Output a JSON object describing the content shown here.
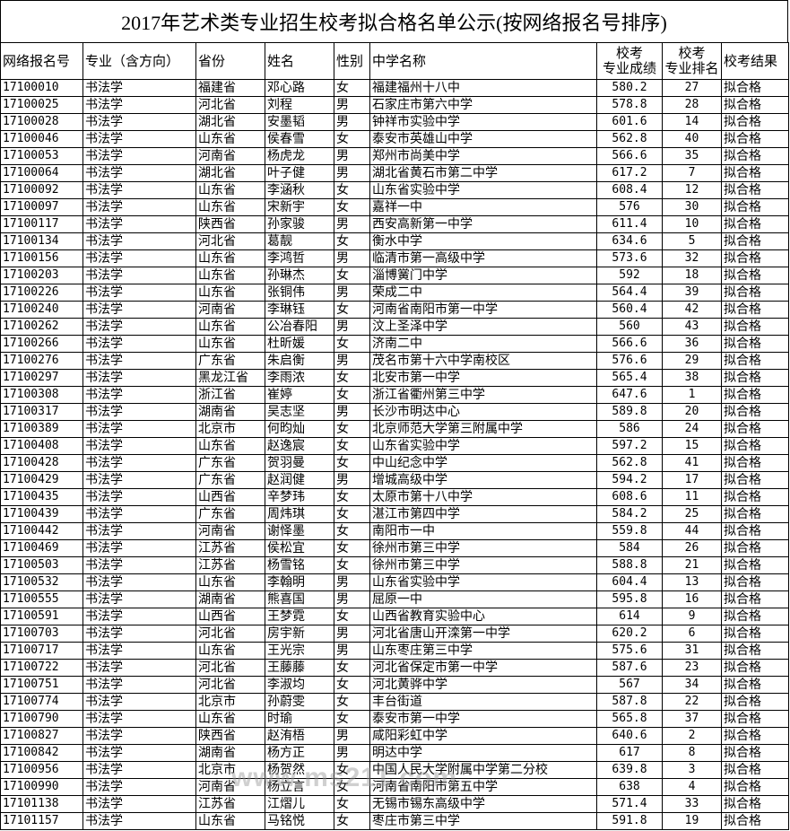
{
  "title": "2017年艺术类专业招生校考拟合格名单公示(按网络报名号排序)",
  "columns": [
    "网络报名号",
    "专业（含方向）",
    "省份",
    "姓名",
    "性别",
    "中学名称",
    "校考\n专业成绩",
    "校考\n专业排名",
    "校考结果"
  ],
  "watermark": "www.ms211.com",
  "rows": [
    [
      "17100010",
      "书法学",
      "福建省",
      "邓心路",
      "女",
      "福建福州十八中",
      "580.2",
      "27",
      "拟合格"
    ],
    [
      "17100025",
      "书法学",
      "河北省",
      "刘程",
      "男",
      "石家庄市第六中学",
      "578.8",
      "28",
      "拟合格"
    ],
    [
      "17100028",
      "书法学",
      "湖北省",
      "安墨韬",
      "男",
      "钟祥市实验中学",
      "601.6",
      "14",
      "拟合格"
    ],
    [
      "17100046",
      "书法学",
      "山东省",
      "侯春雪",
      "女",
      "泰安市英雄山中学",
      "562.8",
      "40",
      "拟合格"
    ],
    [
      "17100053",
      "书法学",
      "河南省",
      "杨虎龙",
      "男",
      "郑州市尚美中学",
      "566.6",
      "35",
      "拟合格"
    ],
    [
      "17100064",
      "书法学",
      "湖北省",
      "叶子健",
      "男",
      "湖北省黄石市第二中学",
      "617.2",
      "7",
      "拟合格"
    ],
    [
      "17100092",
      "书法学",
      "山东省",
      "李涵秋",
      "女",
      "山东省实验中学",
      "608.4",
      "12",
      "拟合格"
    ],
    [
      "17100097",
      "书法学",
      "山东省",
      "宋新宇",
      "女",
      "嘉祥一中",
      "576",
      "30",
      "拟合格"
    ],
    [
      "17100117",
      "书法学",
      "陕西省",
      "孙家骏",
      "男",
      "西安高新第一中学",
      "611.4",
      "10",
      "拟合格"
    ],
    [
      "17100134",
      "书法学",
      "河北省",
      "葛靓",
      "女",
      "衡水中学",
      "634.6",
      "5",
      "拟合格"
    ],
    [
      "17100156",
      "书法学",
      "山东省",
      "李鸿哲",
      "男",
      "临清市第一高级中学",
      "573.6",
      "32",
      "拟合格"
    ],
    [
      "17100203",
      "书法学",
      "山东省",
      "孙琳杰",
      "女",
      "淄博黉门中学",
      "592",
      "18",
      "拟合格"
    ],
    [
      "17100226",
      "书法学",
      "山东省",
      "张铜伟",
      "男",
      "荣成二中",
      "564.4",
      "39",
      "拟合格"
    ],
    [
      "17100240",
      "书法学",
      "河南省",
      "李琳钰",
      "女",
      "河南省南阳市第一中学",
      "560.4",
      "42",
      "拟合格"
    ],
    [
      "17100262",
      "书法学",
      "山东省",
      "公冶春阳",
      "男",
      "汶上圣泽中学",
      "560",
      "43",
      "拟合格"
    ],
    [
      "17100266",
      "书法学",
      "山东省",
      "杜昕媛",
      "女",
      "济南二中",
      "566.6",
      "36",
      "拟合格"
    ],
    [
      "17100276",
      "书法学",
      "广东省",
      "朱启衡",
      "男",
      "茂名市第十六中学南校区",
      "576.6",
      "29",
      "拟合格"
    ],
    [
      "17100297",
      "书法学",
      "黑龙江省",
      "李雨浓",
      "女",
      "北安市第一中学",
      "565.4",
      "38",
      "拟合格"
    ],
    [
      "17100308",
      "书法学",
      "浙江省",
      "崔婷",
      "女",
      "浙江省衢州第三中学",
      "647.6",
      "1",
      "拟合格"
    ],
    [
      "17100317",
      "书法学",
      "湖南省",
      "吴志坚",
      "男",
      "长沙市明达中心",
      "589.8",
      "20",
      "拟合格"
    ],
    [
      "17100389",
      "书法学",
      "北京市",
      "何昀灿",
      "女",
      "北京师范大学第三附属中学",
      "586",
      "24",
      "拟合格"
    ],
    [
      "17100408",
      "书法学",
      "山东省",
      "赵逸宸",
      "女",
      "山东省实验中学",
      "597.2",
      "15",
      "拟合格"
    ],
    [
      "17100428",
      "书法学",
      "广东省",
      "贺羽曼",
      "女",
      "中山纪念中学",
      "562.8",
      "41",
      "拟合格"
    ],
    [
      "17100429",
      "书法学",
      "广东省",
      "赵润健",
      "男",
      "增城高级中学",
      "594.2",
      "17",
      "拟合格"
    ],
    [
      "17100435",
      "书法学",
      "山西省",
      "辛梦玮",
      "女",
      "太原市第十八中学",
      "608.6",
      "11",
      "拟合格"
    ],
    [
      "17100439",
      "书法学",
      "广东省",
      "周炜琪",
      "女",
      "湛江市第四中学",
      "584.2",
      "25",
      "拟合格"
    ],
    [
      "17100442",
      "书法学",
      "河南省",
      "谢怿墨",
      "女",
      "南阳市一中",
      "559.8",
      "44",
      "拟合格"
    ],
    [
      "17100469",
      "书法学",
      "江苏省",
      "侯松宜",
      "女",
      "徐州市第三中学",
      "584",
      "26",
      "拟合格"
    ],
    [
      "17100503",
      "书法学",
      "江苏省",
      "杨雪铭",
      "女",
      "徐州市第三中学",
      "588.8",
      "21",
      "拟合格"
    ],
    [
      "17100532",
      "书法学",
      "山东省",
      "李翰明",
      "男",
      "山东省实验中学",
      "604.4",
      "13",
      "拟合格"
    ],
    [
      "17100555",
      "书法学",
      "湖南省",
      "熊喜国",
      "男",
      "屈原一中",
      "595.8",
      "16",
      "拟合格"
    ],
    [
      "17100591",
      "书法学",
      "山西省",
      "王梦霓",
      "女",
      "山西省教育实验中心",
      "614",
      "9",
      "拟合格"
    ],
    [
      "17100703",
      "书法学",
      "河北省",
      "房宇新",
      "男",
      "河北省唐山开滦第一中学",
      "620.2",
      "6",
      "拟合格"
    ],
    [
      "17100717",
      "书法学",
      "山东省",
      "王光宗",
      "男",
      "山东枣庄第三中学",
      "575.6",
      "31",
      "拟合格"
    ],
    [
      "17100722",
      "书法学",
      "河北省",
      "王藤藤",
      "女",
      "河北省保定市第一中学",
      "587.6",
      "23",
      "拟合格"
    ],
    [
      "17100751",
      "书法学",
      "河北省",
      "李淑均",
      "女",
      "河北黄骅中学",
      "567",
      "34",
      "拟合格"
    ],
    [
      "17100774",
      "书法学",
      "北京市",
      "孙蔚雯",
      "女",
      "丰台街道",
      "587.8",
      "22",
      "拟合格"
    ],
    [
      "17100790",
      "书法学",
      "山东省",
      "时瑜",
      "女",
      "泰安市第一中学",
      "565.8",
      "37",
      "拟合格"
    ],
    [
      "17100827",
      "书法学",
      "陕西省",
      "赵洧梧",
      "男",
      "咸阳彩虹中学",
      "640.6",
      "2",
      "拟合格"
    ],
    [
      "17100842",
      "书法学",
      "湖南省",
      "杨方正",
      "男",
      "明达中学",
      "617",
      "8",
      "拟合格"
    ],
    [
      "17100956",
      "书法学",
      "北京市",
      "杨贺然",
      "女",
      "中国人民大学附属中学第二分校",
      "639.8",
      "3",
      "拟合格"
    ],
    [
      "17100990",
      "书法学",
      "河南省",
      "杨立言",
      "女",
      "河南省南阳市第五中学",
      "638",
      "4",
      "拟合格"
    ],
    [
      "17101138",
      "书法学",
      "江苏省",
      "江熠儿",
      "女",
      "无锡市锡东高级中学",
      "571.4",
      "33",
      "拟合格"
    ],
    [
      "17101157",
      "书法学",
      "山东省",
      "马铭悦",
      "女",
      "枣庄市第三中学",
      "591.8",
      "19",
      "拟合格"
    ]
  ]
}
